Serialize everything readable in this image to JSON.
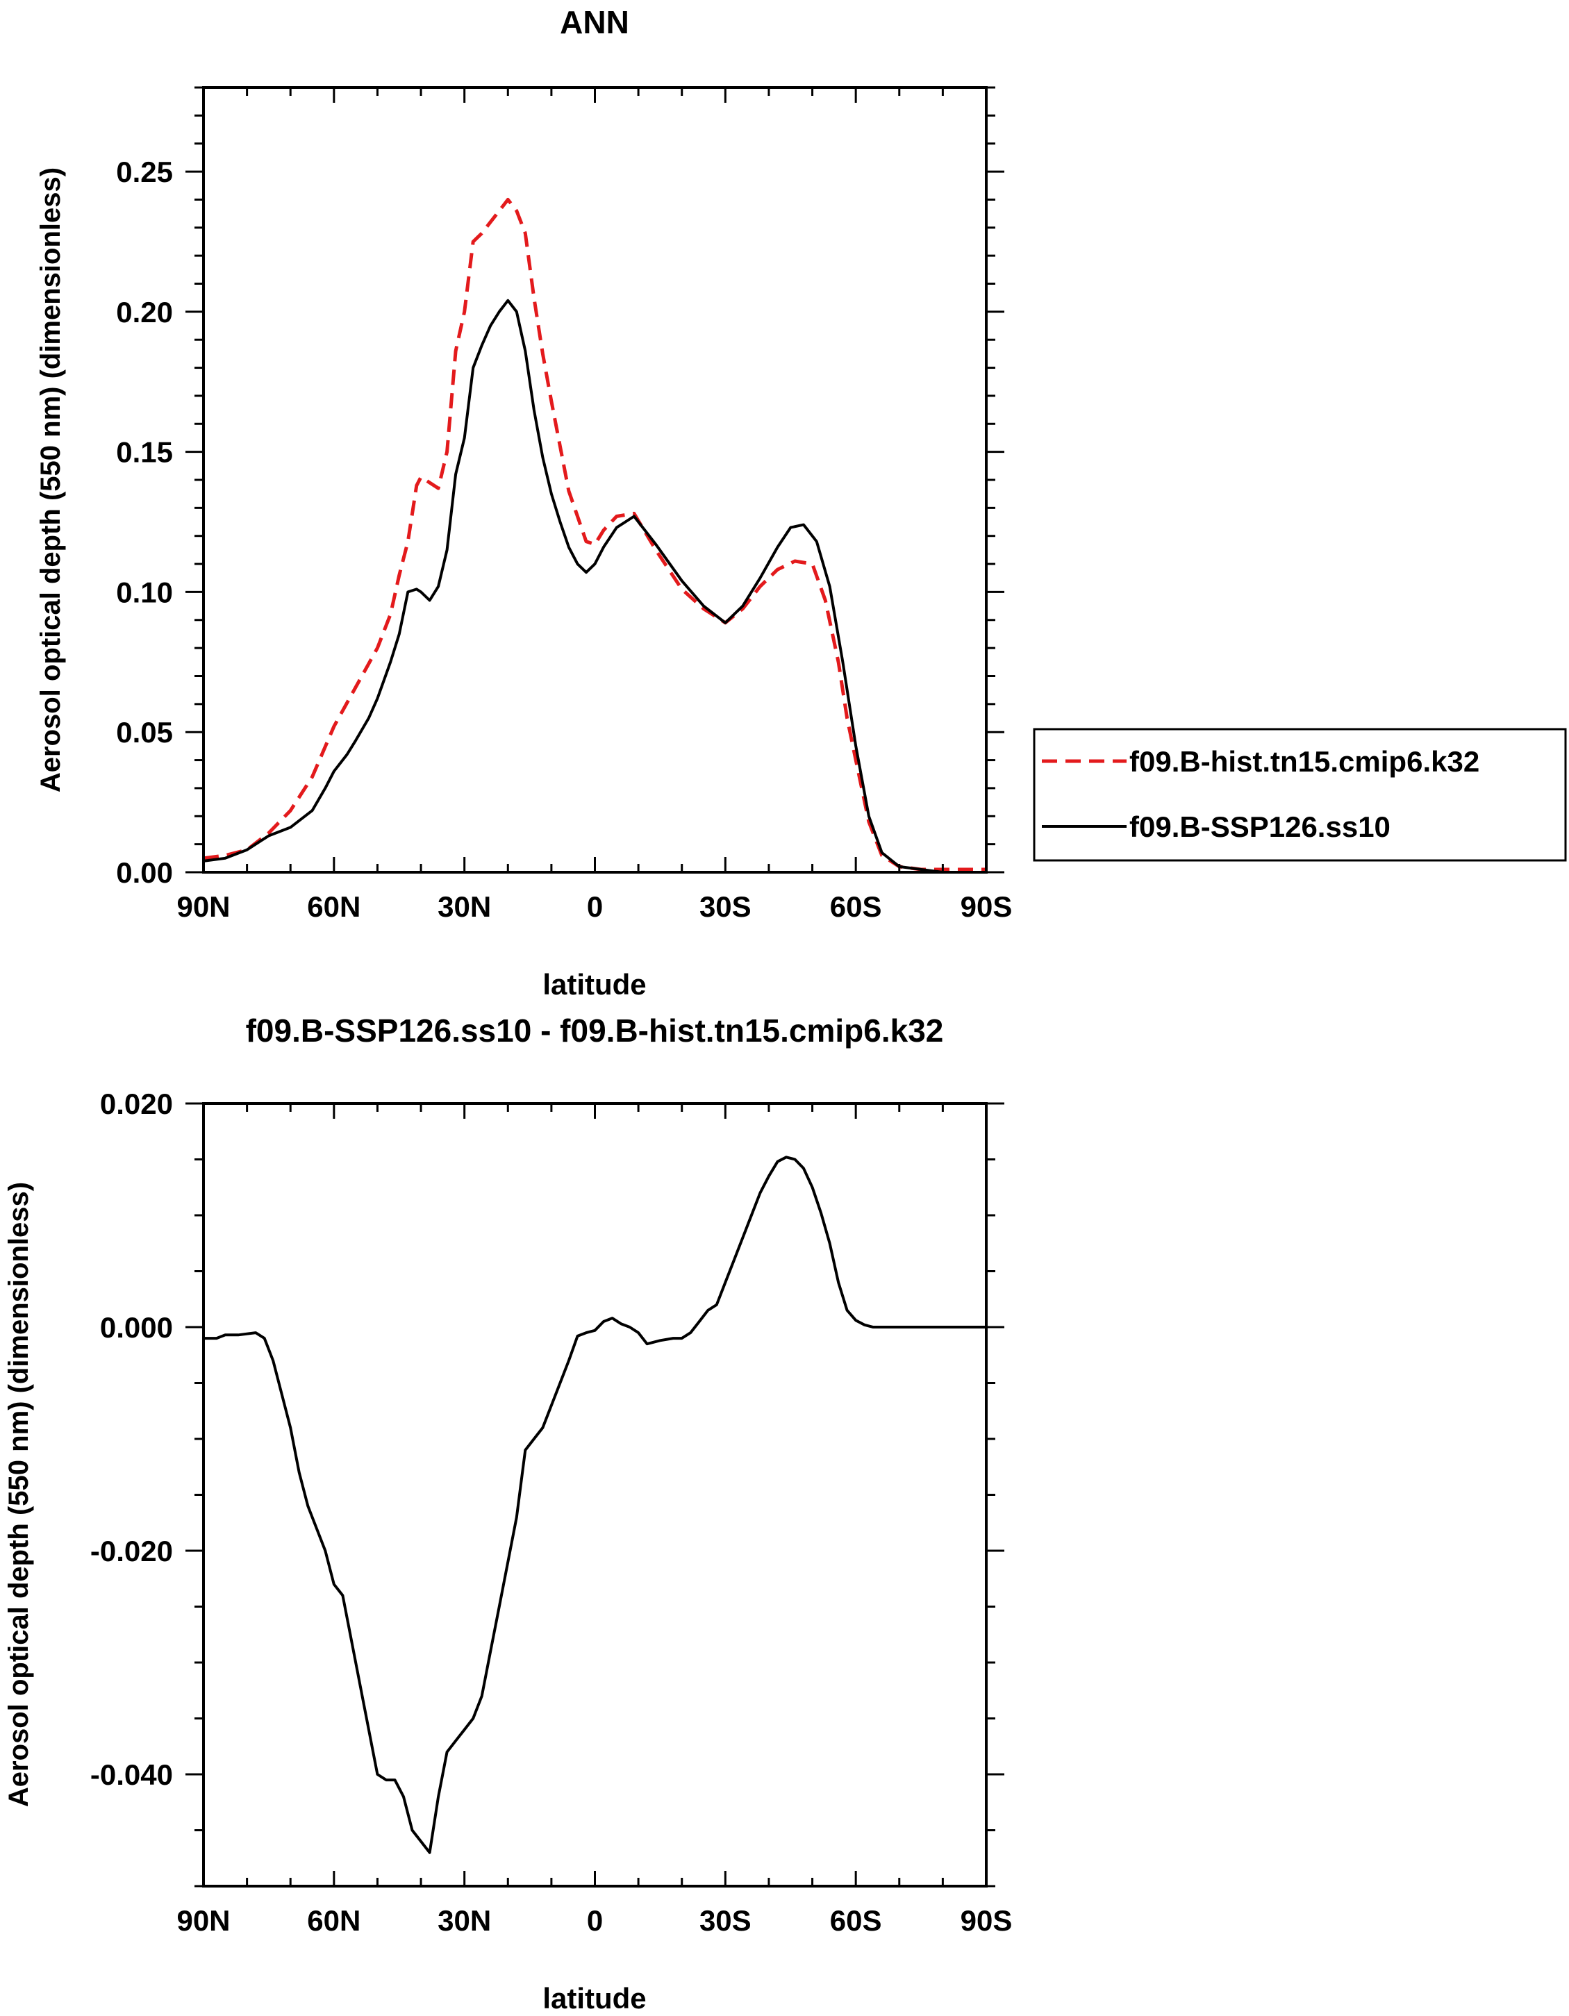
{
  "chart_data": [
    {
      "type": "line",
      "title": "ANN",
      "xlabel": "latitude",
      "ylabel": "Aerosol optical depth (550 nm) (dimensionless)",
      "xlim": [
        90,
        -90
      ],
      "ylim": [
        0,
        0.28
      ],
      "x_ticks": [
        {
          "value": 90,
          "label": "90N"
        },
        {
          "value": 60,
          "label": "60N"
        },
        {
          "value": 30,
          "label": "30N"
        },
        {
          "value": 0,
          "label": "0"
        },
        {
          "value": -30,
          "label": "30S"
        },
        {
          "value": -60,
          "label": "60S"
        },
        {
          "value": -90,
          "label": "90S"
        }
      ],
      "y_ticks": [
        {
          "value": 0.0,
          "label": "0.00"
        },
        {
          "value": 0.05,
          "label": "0.05"
        },
        {
          "value": 0.1,
          "label": "0.10"
        },
        {
          "value": 0.15,
          "label": "0.15"
        },
        {
          "value": 0.2,
          "label": "0.20"
        },
        {
          "value": 0.25,
          "label": "0.25"
        }
      ],
      "grid": false,
      "legend_position": "right",
      "series": [
        {
          "name": "f09.B-hist.tn15.cmip6.k32",
          "color": "#e31a1c",
          "dash": "dashed",
          "x": [
            90,
            85,
            80,
            75,
            70,
            65,
            60,
            55,
            50,
            47,
            45,
            43,
            41,
            40,
            38,
            36,
            34,
            32,
            30,
            28,
            26,
            24,
            22,
            20,
            18,
            16,
            14,
            12,
            10,
            8,
            6,
            4,
            2,
            0,
            -2,
            -5,
            -9,
            -14,
            -20,
            -25,
            -30,
            -34,
            -38,
            -42,
            -46,
            -50,
            -53,
            -56,
            -58,
            -60,
            -63,
            -66,
            -70,
            -75,
            -80,
            -85,
            -90
          ],
          "y": [
            0.005,
            0.006,
            0.008,
            0.014,
            0.022,
            0.034,
            0.052,
            0.066,
            0.08,
            0.092,
            0.106,
            0.118,
            0.138,
            0.141,
            0.139,
            0.137,
            0.15,
            0.186,
            0.2,
            0.225,
            0.228,
            0.232,
            0.236,
            0.24,
            0.236,
            0.228,
            0.205,
            0.185,
            0.168,
            0.152,
            0.136,
            0.127,
            0.118,
            0.117,
            0.122,
            0.127,
            0.128,
            0.115,
            0.101,
            0.094,
            0.089,
            0.094,
            0.102,
            0.108,
            0.111,
            0.11,
            0.097,
            0.075,
            0.055,
            0.04,
            0.018,
            0.006,
            0.002,
            0.001,
            0.001,
            0.001,
            0.001
          ]
        },
        {
          "name": "f09.B-SSP126.ss10",
          "color": "#000000",
          "dash": "solid",
          "x": [
            90,
            85,
            80,
            75,
            70,
            65,
            62,
            60,
            57,
            55,
            52,
            50,
            47,
            45,
            43,
            41,
            40,
            38,
            36,
            34,
            32,
            30,
            28,
            26,
            24,
            22,
            20,
            18,
            16,
            14,
            12,
            10,
            8,
            6,
            4,
            2,
            0,
            -2,
            -5,
            -9,
            -14,
            -20,
            -25,
            -30,
            -34,
            -38,
            -42,
            -45,
            -48,
            -51,
            -54,
            -57,
            -60,
            -63,
            -66,
            -70,
            -75,
            -80,
            -85,
            -90
          ],
          "y": [
            0.004,
            0.005,
            0.008,
            0.013,
            0.016,
            0.022,
            0.03,
            0.036,
            0.042,
            0.047,
            0.055,
            0.062,
            0.075,
            0.085,
            0.1,
            0.101,
            0.1,
            0.097,
            0.102,
            0.115,
            0.142,
            0.155,
            0.18,
            0.188,
            0.195,
            0.2,
            0.204,
            0.2,
            0.186,
            0.165,
            0.148,
            0.135,
            0.125,
            0.116,
            0.11,
            0.107,
            0.11,
            0.116,
            0.123,
            0.127,
            0.117,
            0.104,
            0.095,
            0.089,
            0.095,
            0.105,
            0.116,
            0.123,
            0.124,
            0.118,
            0.102,
            0.075,
            0.045,
            0.02,
            0.007,
            0.002,
            0.001,
            0.0,
            0.0,
            0.0
          ]
        }
      ]
    },
    {
      "type": "line",
      "title": "f09.B-SSP126.ss10 - f09.B-hist.tn15.cmip6.k32",
      "xlabel": "latitude",
      "ylabel": "Aerosol optical depth (550 nm) (dimensionless)",
      "xlim": [
        90,
        -90
      ],
      "ylim": [
        -0.05,
        0.02
      ],
      "x_ticks": [
        {
          "value": 90,
          "label": "90N"
        },
        {
          "value": 60,
          "label": "60N"
        },
        {
          "value": 30,
          "label": "30N"
        },
        {
          "value": 0,
          "label": "0"
        },
        {
          "value": -30,
          "label": "30S"
        },
        {
          "value": -60,
          "label": "60S"
        },
        {
          "value": -90,
          "label": "90S"
        }
      ],
      "y_ticks": [
        {
          "value": 0.02,
          "label": "0.020"
        },
        {
          "value": 0.0,
          "label": "0.000"
        },
        {
          "value": -0.02,
          "label": "-0.020"
        },
        {
          "value": -0.04,
          "label": "-0.040"
        }
      ],
      "grid": false,
      "series": [
        {
          "color": "#000000",
          "dash": "solid",
          "x": [
            90,
            87,
            85,
            82,
            80,
            78,
            76,
            74,
            72,
            70,
            68,
            66,
            64,
            62,
            60,
            58,
            56,
            54,
            52,
            50,
            48,
            46,
            44,
            42,
            40,
            38,
            36,
            34,
            32,
            30,
            28,
            26,
            24,
            22,
            20,
            18,
            16,
            14,
            12,
            10,
            8,
            6,
            4,
            2,
            0,
            -2,
            -4,
            -6,
            -8,
            -10,
            -12,
            -15,
            -18,
            -20,
            -22,
            -24,
            -26,
            -28,
            -30,
            -32,
            -34,
            -36,
            -38,
            -40,
            -42,
            -44,
            -46,
            -48,
            -50,
            -52,
            -54,
            -56,
            -58,
            -60,
            -62,
            -64,
            -66,
            -68,
            -72,
            -76,
            -80,
            -85,
            -90
          ],
          "y": [
            -0.001,
            -0.001,
            -0.0007,
            -0.0007,
            -0.0006,
            -0.0005,
            -0.001,
            -0.003,
            -0.006,
            -0.009,
            -0.013,
            -0.016,
            -0.018,
            -0.02,
            -0.023,
            -0.024,
            -0.028,
            -0.032,
            -0.036,
            -0.04,
            -0.0405,
            -0.0405,
            -0.042,
            -0.045,
            -0.046,
            -0.047,
            -0.042,
            -0.038,
            -0.037,
            -0.036,
            -0.035,
            -0.033,
            -0.029,
            -0.025,
            -0.021,
            -0.017,
            -0.011,
            -0.01,
            -0.009,
            -0.007,
            -0.005,
            -0.003,
            -0.0008,
            -0.0005,
            -0.0003,
            0.0005,
            0.0008,
            0.0003,
            0.0,
            -0.0005,
            -0.0015,
            -0.0012,
            -0.001,
            -0.001,
            -0.0005,
            0.0005,
            0.0015,
            0.002,
            0.004,
            0.006,
            0.008,
            0.01,
            0.012,
            0.0135,
            0.0148,
            0.0152,
            0.015,
            0.0142,
            0.0125,
            0.0102,
            0.0075,
            0.004,
            0.0015,
            0.0006,
            0.0002,
            0.0,
            0.0,
            0.0,
            0.0,
            0.0,
            0.0,
            0.0,
            0.0
          ]
        }
      ]
    }
  ]
}
